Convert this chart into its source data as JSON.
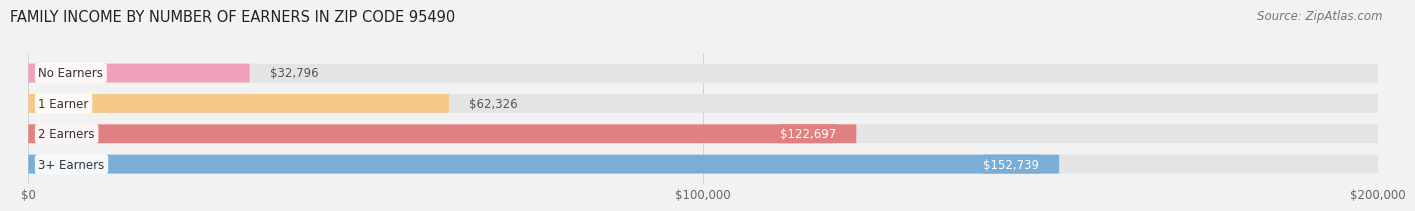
{
  "title": "FAMILY INCOME BY NUMBER OF EARNERS IN ZIP CODE 95490",
  "source": "Source: ZipAtlas.com",
  "categories": [
    "No Earners",
    "1 Earner",
    "2 Earners",
    "3+ Earners"
  ],
  "values": [
    32796,
    62326,
    122697,
    152739
  ],
  "bar_colors": [
    "#f0a0b8",
    "#f5c98a",
    "#e08080",
    "#7aaed6"
  ],
  "label_colors": [
    "#555555",
    "#555555",
    "#ffffff",
    "#ffffff"
  ],
  "value_labels": [
    "$32,796",
    "$62,326",
    "$122,697",
    "$152,739"
  ],
  "xlim": [
    0,
    200000
  ],
  "xtick_labels": [
    "$0",
    "$100,000",
    "$200,000"
  ],
  "bar_height": 0.62,
  "background_color": "#f2f2f2",
  "bar_bg_color": "#e4e4e4",
  "title_fontsize": 10.5,
  "source_fontsize": 8.5,
  "label_fontsize": 8.5,
  "value_fontsize": 8.5
}
